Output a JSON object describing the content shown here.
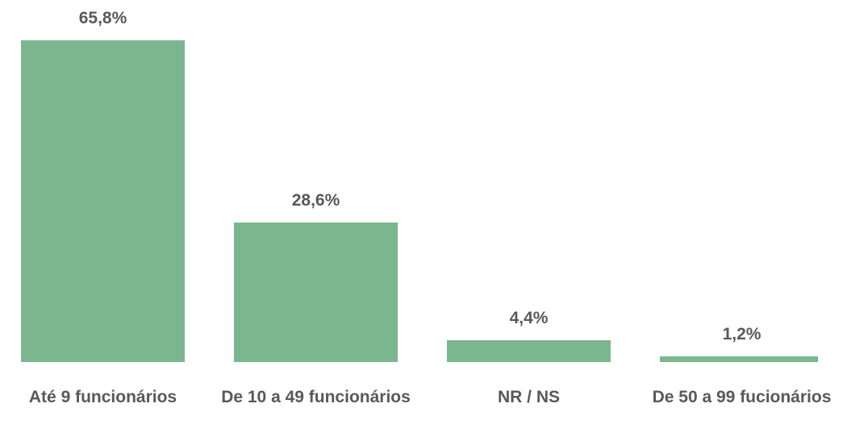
{
  "chart_data": {
    "type": "bar",
    "categories": [
      "Até 9 funcionários",
      "De 10 a 49 funcionários",
      "NR / NS",
      "De 50 a 99 fucionários"
    ],
    "values": [
      65.8,
      28.6,
      4.4,
      1.2
    ],
    "value_labels": [
      "65,8%",
      "28,6%",
      "4,4%",
      "1,2%"
    ],
    "color": "#7ab78f"
  }
}
